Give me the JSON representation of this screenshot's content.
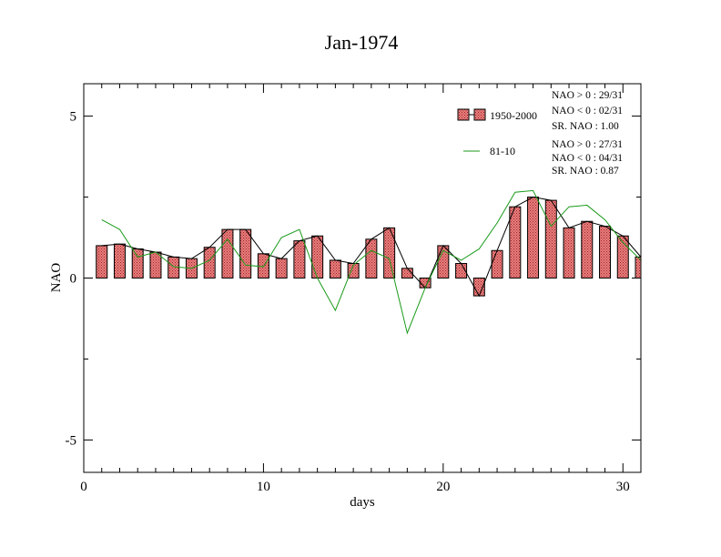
{
  "chart_data": {
    "type": "bar",
    "title": "Jan-1974",
    "xlabel": "days",
    "ylabel": "NAO",
    "xlim": [
      0,
      31
    ],
    "ylim": [
      -6,
      6
    ],
    "xticks": [
      0,
      10,
      20,
      30
    ],
    "yticks": [
      -5,
      0,
      5
    ],
    "grid": false,
    "legend_position": "top-right",
    "colors": {
      "bar_fill": "#e88080",
      "bar_hatch": "#a02020",
      "bar_line": "#000000",
      "climatology_line": "#1a9a1a"
    },
    "x": [
      1,
      2,
      3,
      4,
      5,
      6,
      7,
      8,
      9,
      10,
      11,
      12,
      13,
      14,
      15,
      16,
      17,
      18,
      19,
      20,
      21,
      22,
      23,
      24,
      25,
      26,
      27,
      28,
      29,
      30,
      31
    ],
    "series": [
      {
        "name": "1950-2000",
        "type": "bar",
        "values": [
          1.0,
          1.05,
          0.9,
          0.8,
          0.65,
          0.6,
          0.95,
          1.5,
          1.5,
          0.75,
          0.6,
          1.15,
          1.3,
          0.55,
          0.45,
          1.2,
          1.55,
          0.3,
          -0.3,
          1.0,
          0.45,
          -0.55,
          0.85,
          2.2,
          2.5,
          2.4,
          1.55,
          1.75,
          1.6,
          1.3,
          0.65
        ]
      },
      {
        "name": "81-10",
        "type": "line",
        "values": [
          1.8,
          1.5,
          0.65,
          0.8,
          0.35,
          0.3,
          0.55,
          1.2,
          0.4,
          0.35,
          1.25,
          1.5,
          0.0,
          -1.0,
          0.4,
          0.85,
          0.6,
          -1.7,
          -0.3,
          0.85,
          0.55,
          0.9,
          1.7,
          2.65,
          2.7,
          1.6,
          2.2,
          2.25,
          1.8,
          1.1,
          0.55
        ]
      }
    ],
    "stats": [
      {
        "series": "1950-2000",
        "lines": [
          "NAO > 0 : 29/31",
          "NAO < 0 : 02/31",
          "SR. NAO :  1.00"
        ]
      },
      {
        "series": "81-10",
        "lines": [
          "NAO > 0 : 27/31",
          "NAO < 0 : 04/31",
          "SR. NAO :  0.87"
        ]
      }
    ]
  }
}
